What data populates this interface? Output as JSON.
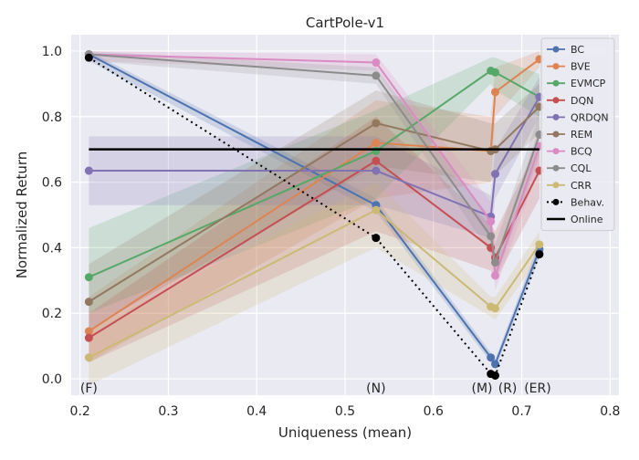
{
  "chart_data": {
    "type": "line",
    "title": "CartPole-v1",
    "xlabel": "Uniqueness (mean)",
    "ylabel": "Normalized Return",
    "xlim": [
      0.19,
      0.81
    ],
    "ylim": [
      -0.05,
      1.05
    ],
    "x_ticks": [
      0.2,
      0.3,
      0.4,
      0.5,
      0.6,
      0.7,
      0.8
    ],
    "y_ticks": [
      0.0,
      0.2,
      0.4,
      0.6,
      0.8,
      1.0
    ],
    "x_tick_labels": [
      "0.2",
      "0.3",
      "0.4",
      "0.5",
      "0.6",
      "0.7",
      "0.8"
    ],
    "y_tick_labels": [
      "0.0",
      "0.2",
      "0.4",
      "0.6",
      "0.8",
      "1.0"
    ],
    "grid": true,
    "legend_position": "top-right",
    "background": "#eaeaf2",
    "x": [
      0.21,
      0.535,
      0.665,
      0.67,
      0.72
    ],
    "point_labels": [
      {
        "text": "(F)",
        "x": 0.21
      },
      {
        "text": "(N)",
        "x": 0.535
      },
      {
        "text": "(M)",
        "x": 0.655
      },
      {
        "text": "(R)",
        "x": 0.684
      },
      {
        "text": "(ER)",
        "x": 0.718
      }
    ],
    "series": [
      {
        "name": "BC",
        "color": "#4c72b0",
        "values": [
          0.99,
          0.53,
          0.065,
          0.045,
          0.395
        ],
        "lower": [
          0.97,
          0.51,
          0.05,
          0.03,
          0.37
        ],
        "upper": [
          1.0,
          0.55,
          0.08,
          0.06,
          0.42
        ]
      },
      {
        "name": "BVE",
        "color": "#dd8452",
        "values": [
          0.145,
          0.72,
          0.695,
          0.875,
          0.975
        ],
        "lower": [
          0.05,
          0.55,
          0.6,
          0.8,
          0.95
        ],
        "upper": [
          0.25,
          0.85,
          0.8,
          0.95,
          1.0
        ]
      },
      {
        "name": "EVMCP",
        "color": "#55a868",
        "values": [
          0.31,
          0.695,
          0.94,
          0.935,
          0.86
        ],
        "lower": [
          0.2,
          0.55,
          0.9,
          0.88,
          0.8
        ],
        "upper": [
          0.46,
          0.82,
          0.98,
          0.98,
          0.93
        ]
      },
      {
        "name": "DQN",
        "color": "#c44e52",
        "values": [
          0.125,
          0.665,
          0.4,
          0.37,
          0.635
        ],
        "lower": [
          0.05,
          0.45,
          0.33,
          0.3,
          0.55
        ],
        "upper": [
          0.2,
          0.8,
          0.47,
          0.45,
          0.72
        ]
      },
      {
        "name": "QRDQN",
        "color": "#8172b3",
        "values": [
          0.635,
          0.635,
          0.495,
          0.625,
          0.86
        ],
        "lower": [
          0.53,
          0.53,
          0.43,
          0.55,
          0.8
        ],
        "upper": [
          0.74,
          0.74,
          0.56,
          0.7,
          0.92
        ]
      },
      {
        "name": "REM",
        "color": "#937860",
        "values": [
          0.235,
          0.78,
          0.695,
          0.7,
          0.83
        ],
        "lower": [
          0.15,
          0.65,
          0.6,
          0.62,
          0.75
        ],
        "upper": [
          0.35,
          0.88,
          0.78,
          0.78,
          0.9
        ]
      },
      {
        "name": "BCQ",
        "color": "#da8bc3",
        "values": [
          0.99,
          0.965,
          0.48,
          0.315,
          0.71
        ],
        "lower": [
          0.97,
          0.94,
          0.42,
          0.27,
          0.65
        ],
        "upper": [
          1.0,
          0.99,
          0.54,
          0.36,
          0.77
        ]
      },
      {
        "name": "CQL",
        "color": "#8c8c8c",
        "values": [
          0.99,
          0.925,
          0.435,
          0.355,
          0.745
        ],
        "lower": [
          0.97,
          0.9,
          0.38,
          0.3,
          0.68
        ],
        "upper": [
          1.0,
          0.95,
          0.49,
          0.41,
          0.81
        ]
      },
      {
        "name": "CRR",
        "color": "#ccb974",
        "values": [
          0.065,
          0.515,
          0.22,
          0.215,
          0.41
        ],
        "lower": [
          -0.02,
          0.4,
          0.19,
          0.18,
          0.37
        ],
        "upper": [
          0.15,
          0.6,
          0.25,
          0.25,
          0.45
        ]
      }
    ],
    "behavior": {
      "name": "Behav.",
      "color": "#000000",
      "x": [
        0.21,
        0.535,
        0.665,
        0.67,
        0.72
      ],
      "values": [
        0.98,
        0.43,
        0.015,
        0.01,
        0.38
      ]
    },
    "online": {
      "name": "Online",
      "color": "#000000",
      "value": 0.7,
      "x_range": [
        0.19,
        0.81
      ]
    }
  }
}
